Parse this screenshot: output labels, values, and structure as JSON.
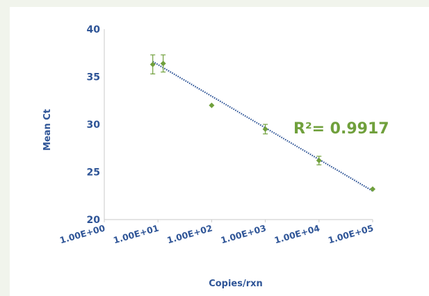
{
  "colors": {
    "axis_text": "#2f5597",
    "point": "#70a03c",
    "trendline": "#2f5597",
    "annotation": "#70a03c",
    "axis_line": "#c9c9c9"
  },
  "chart_data": {
    "type": "scatter",
    "title": "",
    "xlabel": "Copies/rxn",
    "ylabel": "Mean Ct",
    "xscale": "log",
    "xlim": [
      1,
      100000
    ],
    "ylim": [
      20,
      40
    ],
    "x_ticks": [
      {
        "value": 1,
        "label": "1.00E+00"
      },
      {
        "value": 10,
        "label": "1.00E+01"
      },
      {
        "value": 100,
        "label": "1.00E+02"
      },
      {
        "value": 1000,
        "label": "1.00E+03"
      },
      {
        "value": 10000,
        "label": "1.00E+04"
      },
      {
        "value": 100000,
        "label": "1.00E+05"
      }
    ],
    "y_ticks": [
      {
        "value": 20,
        "label": "20"
      },
      {
        "value": 25,
        "label": "25"
      },
      {
        "value": 30,
        "label": "30"
      },
      {
        "value": 35,
        "label": "35"
      },
      {
        "value": 40,
        "label": "40"
      }
    ],
    "points": [
      {
        "x": 8,
        "y": 36.3,
        "err": 1.0
      },
      {
        "x": 12.5,
        "y": 36.4,
        "err": 0.9
      },
      {
        "x": 100,
        "y": 32.0,
        "err": 0.15
      },
      {
        "x": 1000,
        "y": 29.5,
        "err": 0.5
      },
      {
        "x": 10000,
        "y": 26.2,
        "err": 0.45
      },
      {
        "x": 100000,
        "y": 23.2,
        "err": 0.1
      }
    ],
    "trendline": {
      "type": "log-linear",
      "x_start": 8,
      "y_start": 36.6,
      "x_end": 100000,
      "y_end": 23.0
    },
    "annotation": "R²= 0.9917",
    "grid": false,
    "legend": "none"
  }
}
